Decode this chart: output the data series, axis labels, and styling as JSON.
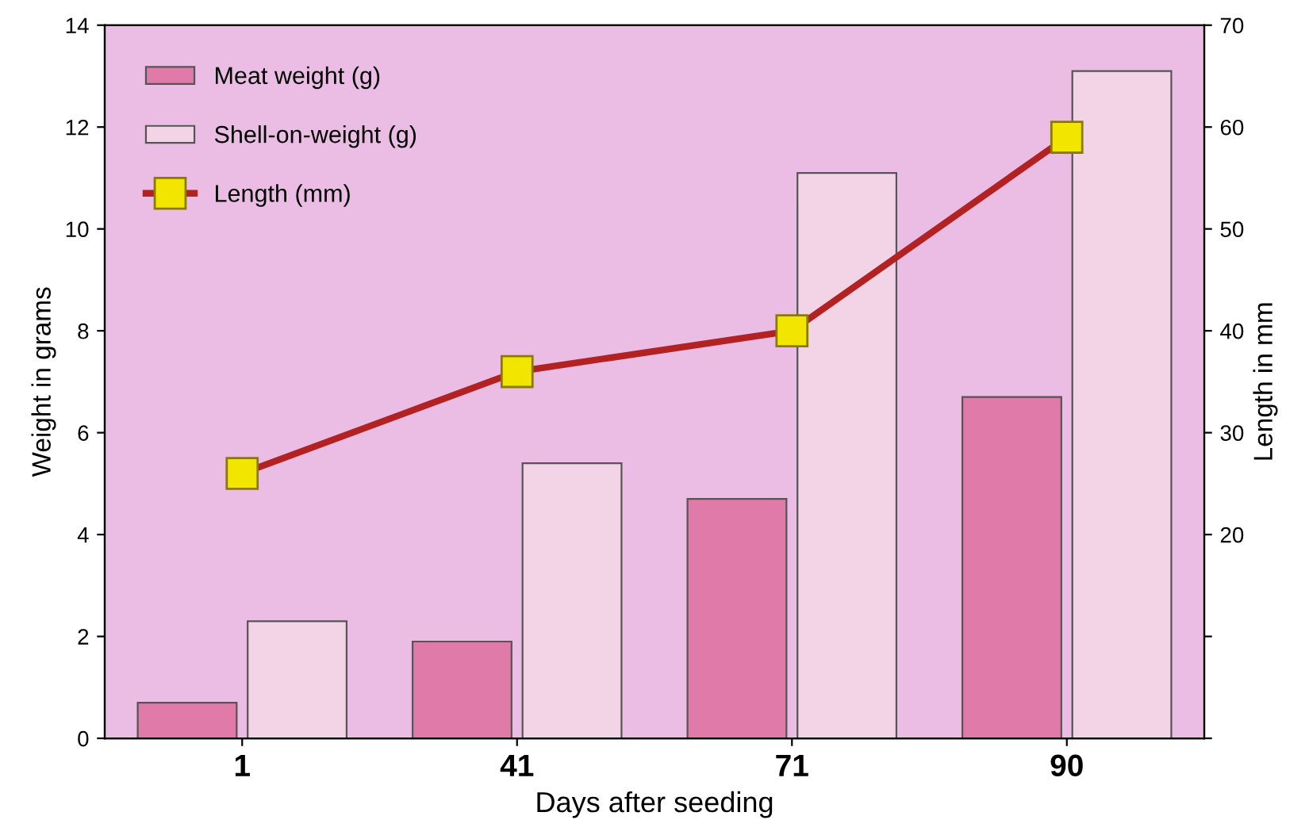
{
  "chart_data": {
    "type": "bar",
    "xlabel": "Days after seeding",
    "ylabel": "Weight in grams",
    "y2label": "Length in mm",
    "categories": [
      "1",
      "41",
      "71",
      "90"
    ],
    "series": [
      {
        "name": "Meat weight (g)",
        "color": "#e07aa8",
        "values": [
          0.7,
          1.9,
          4.7,
          6.7
        ]
      },
      {
        "name": "Shell-on-weight (g)",
        "color": "#f2d4e6",
        "values": [
          2.3,
          5.4,
          11.1,
          13.1
        ]
      },
      {
        "name": "Length (mm)",
        "type": "line",
        "axis": "y2",
        "color": "#b22222",
        "values": [
          26,
          36,
          40,
          59
        ]
      }
    ],
    "ylim": [
      0,
      14
    ],
    "yticks": [
      0,
      2,
      4,
      6,
      8,
      10,
      12,
      14
    ],
    "y2lim": [
      0,
      70
    ],
    "y2ticks": [
      {
        "value": 0,
        "label": null
      },
      {
        "value": 10,
        "label": null
      },
      20,
      30,
      40,
      50,
      60,
      70
    ],
    "marker": "square",
    "line_style": "solid",
    "grid": false,
    "legend": "top left"
  }
}
